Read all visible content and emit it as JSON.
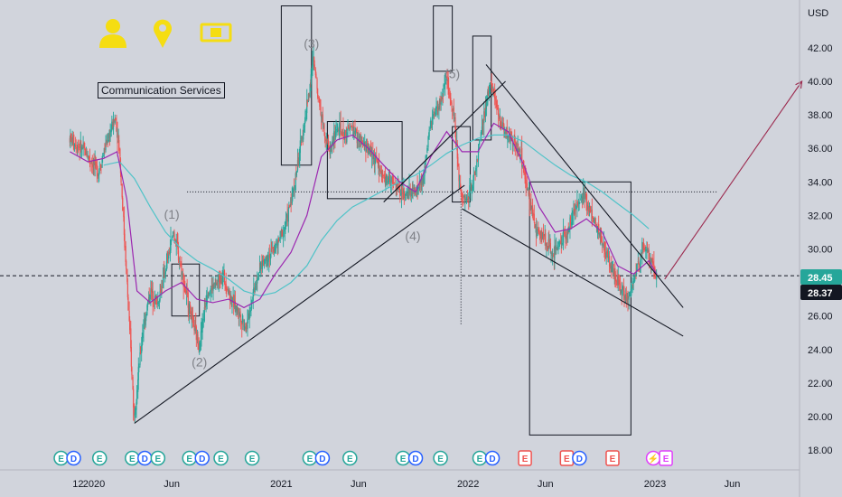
{
  "chart_data": {
    "type": "candlestick",
    "currency": "USD",
    "sector_label": "Communication Services",
    "y_range": [
      17,
      44
    ],
    "y_ticks": [
      "42.00",
      "40.00",
      "38.00",
      "36.00",
      "34.00",
      "32.00",
      "30.00",
      "28.00",
      "26.00",
      "24.00",
      "22.00",
      "20.00",
      "18.00"
    ],
    "y_tick_values": [
      42,
      40,
      38,
      36,
      34,
      32,
      30,
      28,
      26,
      24,
      22,
      20,
      18
    ],
    "x_ticks": [
      "12",
      "2020",
      "Jun",
      "2021",
      "Jun",
      "2022",
      "Jun",
      "2023",
      "Jun"
    ],
    "x_tick_dates": [
      "2019-12-01",
      "2020-01-01",
      "2020-06-01",
      "2021-01-01",
      "2021-06-01",
      "2022-01-01",
      "2022-06-01",
      "2023-01-01",
      "2023-06-01"
    ],
    "last_price": "28.37",
    "moving_average_price": "28.45",
    "price_line_value": 28.4,
    "horizontal_level": 33.4,
    "wave_labels": [
      "(1)",
      "(2)",
      "(3)",
      "(4)",
      "(5)"
    ],
    "wave_label_values": [
      {
        "date": "2020-06-01",
        "price": 31.8
      },
      {
        "date": "2020-07-25",
        "price": 23.0
      },
      {
        "date": "2021-03-01",
        "price": 42.0
      },
      {
        "date": "2021-09-15",
        "price": 30.5
      },
      {
        "date": "2021-12-01",
        "price": 40.2
      }
    ],
    "price_series": [
      [
        "2019-11-15",
        36.6
      ],
      [
        "2019-12-15",
        35.8
      ],
      [
        "2020-01-10",
        34.6
      ],
      [
        "2020-01-25",
        36.3
      ],
      [
        "2020-02-12",
        37.8
      ],
      [
        "2020-02-20",
        36.0
      ],
      [
        "2020-03-05",
        28.5
      ],
      [
        "2020-03-20",
        20.0
      ],
      [
        "2020-04-05",
        25.0
      ],
      [
        "2020-04-20",
        27.5
      ],
      [
        "2020-05-05",
        26.8
      ],
      [
        "2020-05-20",
        28.8
      ],
      [
        "2020-06-05",
        31.0
      ],
      [
        "2020-06-20",
        28.8
      ],
      [
        "2020-07-05",
        26.5
      ],
      [
        "2020-07-25",
        24.2
      ],
      [
        "2020-08-10",
        27.5
      ],
      [
        "2020-08-25",
        27.8
      ],
      [
        "2020-09-10",
        28.5
      ],
      [
        "2020-09-25",
        27.0
      ],
      [
        "2020-10-10",
        26.2
      ],
      [
        "2020-10-25",
        25.3
      ],
      [
        "2020-11-10",
        27.8
      ],
      [
        "2020-11-25",
        29.2
      ],
      [
        "2020-12-10",
        29.7
      ],
      [
        "2020-12-25",
        30.3
      ],
      [
        "2021-01-10",
        31.5
      ],
      [
        "2021-01-25",
        33.5
      ],
      [
        "2021-02-10",
        36.5
      ],
      [
        "2021-02-25",
        39.5
      ],
      [
        "2021-03-05",
        41.3
      ],
      [
        "2021-03-20",
        38.0
      ],
      [
        "2021-04-05",
        35.8
      ],
      [
        "2021-04-20",
        37.2
      ],
      [
        "2021-05-05",
        36.8
      ],
      [
        "2021-05-20",
        37.3
      ],
      [
        "2021-06-05",
        36.3
      ],
      [
        "2021-06-20",
        36.0
      ],
      [
        "2021-07-05",
        35.3
      ],
      [
        "2021-07-20",
        34.2
      ],
      [
        "2021-08-05",
        34.0
      ],
      [
        "2021-08-20",
        33.5
      ],
      [
        "2021-09-05",
        33.2
      ],
      [
        "2021-09-20",
        33.5
      ],
      [
        "2021-10-05",
        34.0
      ],
      [
        "2021-10-20",
        37.5
      ],
      [
        "2021-11-05",
        38.5
      ],
      [
        "2021-11-20",
        40.0
      ],
      [
        "2021-12-05",
        38.0
      ],
      [
        "2021-12-15",
        34.0
      ],
      [
        "2021-12-25",
        32.8
      ],
      [
        "2022-01-10",
        33.8
      ],
      [
        "2022-01-25",
        36.5
      ],
      [
        "2022-02-05",
        38.5
      ],
      [
        "2022-02-15",
        40.2
      ],
      [
        "2022-02-28",
        38.0
      ],
      [
        "2022-03-15",
        37.0
      ],
      [
        "2022-03-30",
        36.5
      ],
      [
        "2022-04-15",
        35.5
      ],
      [
        "2022-04-30",
        33.0
      ],
      [
        "2022-05-15",
        31.0
      ],
      [
        "2022-05-30",
        30.8
      ],
      [
        "2022-06-15",
        29.5
      ],
      [
        "2022-06-30",
        30.5
      ],
      [
        "2022-07-15",
        31.0
      ],
      [
        "2022-07-30",
        32.5
      ],
      [
        "2022-08-15",
        33.2
      ],
      [
        "2022-08-30",
        32.0
      ],
      [
        "2022-09-15",
        31.0
      ],
      [
        "2022-09-30",
        29.5
      ],
      [
        "2022-10-15",
        28.5
      ],
      [
        "2022-10-30",
        27.5
      ],
      [
        "2022-11-10",
        27.0
      ],
      [
        "2022-11-25",
        28.5
      ],
      [
        "2022-12-10",
        30.3
      ],
      [
        "2022-12-25",
        29.2
      ],
      [
        "2023-01-05",
        28.37
      ]
    ],
    "moving_average_fast": [
      [
        "2019-11-15",
        35.8
      ],
      [
        "2019-12-20",
        35.2
      ],
      [
        "2020-01-20",
        35.4
      ],
      [
        "2020-02-15",
        35.8
      ],
      [
        "2020-03-05",
        33.0
      ],
      [
        "2020-03-25",
        27.5
      ],
      [
        "2020-04-20",
        26.8
      ],
      [
        "2020-05-20",
        27.5
      ],
      [
        "2020-06-20",
        28.0
      ],
      [
        "2020-07-20",
        27.0
      ],
      [
        "2020-08-20",
        26.8
      ],
      [
        "2020-09-20",
        27.0
      ],
      [
        "2020-10-20",
        26.5
      ],
      [
        "2020-11-20",
        27.0
      ],
      [
        "2020-12-20",
        28.5
      ],
      [
        "2021-01-20",
        29.8
      ],
      [
        "2021-02-20",
        32.0
      ],
      [
        "2021-03-20",
        35.5
      ],
      [
        "2021-04-20",
        36.5
      ],
      [
        "2021-05-20",
        36.8
      ],
      [
        "2021-06-20",
        36.0
      ],
      [
        "2021-07-20",
        35.0
      ],
      [
        "2021-08-20",
        34.0
      ],
      [
        "2021-09-20",
        33.4
      ],
      [
        "2021-10-20",
        35.5
      ],
      [
        "2021-11-20",
        37.0
      ],
      [
        "2021-12-20",
        35.8
      ],
      [
        "2022-01-20",
        35.8
      ],
      [
        "2022-02-20",
        37.5
      ],
      [
        "2022-03-20",
        37.0
      ],
      [
        "2022-04-20",
        35.0
      ],
      [
        "2022-05-20",
        32.5
      ],
      [
        "2022-06-20",
        31.0
      ],
      [
        "2022-07-20",
        31.2
      ],
      [
        "2022-08-20",
        31.8
      ],
      [
        "2022-09-20",
        31.0
      ],
      [
        "2022-10-20",
        29.0
      ],
      [
        "2022-11-20",
        28.5
      ],
      [
        "2022-12-20",
        29.3
      ],
      [
        "2023-01-05",
        28.45
      ]
    ],
    "moving_average_slow": [
      [
        "2020-01-20",
        35.0
      ],
      [
        "2020-02-20",
        35.2
      ],
      [
        "2020-03-20",
        34.2
      ],
      [
        "2020-04-20",
        32.5
      ],
      [
        "2020-05-20",
        31.0
      ],
      [
        "2020-06-20",
        30.0
      ],
      [
        "2020-07-20",
        29.3
      ],
      [
        "2020-08-20",
        28.8
      ],
      [
        "2020-09-20",
        28.2
      ],
      [
        "2020-10-20",
        27.5
      ],
      [
        "2020-11-20",
        27.2
      ],
      [
        "2020-12-20",
        27.4
      ],
      [
        "2021-01-20",
        28.0
      ],
      [
        "2021-02-20",
        29.0
      ],
      [
        "2021-03-20",
        30.5
      ],
      [
        "2021-04-20",
        31.7
      ],
      [
        "2021-05-20",
        32.5
      ],
      [
        "2021-06-20",
        33.0
      ],
      [
        "2021-07-20",
        33.5
      ],
      [
        "2021-08-20",
        34.0
      ],
      [
        "2021-09-20",
        34.4
      ],
      [
        "2021-10-20",
        35.0
      ],
      [
        "2021-11-20",
        35.7
      ],
      [
        "2021-12-20",
        36.2
      ],
      [
        "2022-01-20",
        36.6
      ],
      [
        "2022-02-20",
        36.8
      ],
      [
        "2022-03-20",
        36.8
      ],
      [
        "2022-04-20",
        36.4
      ],
      [
        "2022-05-20",
        35.7
      ],
      [
        "2022-06-20",
        35.0
      ],
      [
        "2022-07-20",
        34.4
      ],
      [
        "2022-08-20",
        34.0
      ],
      [
        "2022-09-20",
        33.4
      ],
      [
        "2022-10-20",
        32.7
      ],
      [
        "2022-11-20",
        32.0
      ],
      [
        "2022-12-20",
        31.2
      ]
    ],
    "trend_lines": [
      {
        "from": [
          "2020-03-20",
          19.6
        ],
        "to": [
          "2021-12-25",
          33.8
        ]
      },
      {
        "from": [
          "2021-07-20",
          32.8
        ],
        "to": [
          "2022-03-15",
          40.0
        ]
      },
      {
        "from": [
          "2022-02-05",
          41.0
        ],
        "to": [
          "2023-02-25",
          26.5
        ]
      },
      {
        "from": [
          "2021-12-20",
          32.4
        ],
        "to": [
          "2023-02-25",
          24.8
        ]
      },
      {
        "from": [
          "2023-01-20",
          28.2
        ],
        "to": [
          "2023-10-15",
          40.0
        ]
      }
    ],
    "annotation_boxes": [
      {
        "from": [
          "2020-06-01",
          26.0
        ],
        "to": [
          "2020-07-25",
          29.1
        ]
      },
      {
        "from": [
          "2021-01-01",
          35.0
        ],
        "to": [
          "2021-03-01",
          44.5
        ]
      },
      {
        "from": [
          "2021-04-01",
          33.0
        ],
        "to": [
          "2021-08-25",
          37.6
        ]
      },
      {
        "from": [
          "2021-10-25",
          40.6
        ],
        "to": [
          "2021-12-01",
          44.5
        ]
      },
      {
        "from": [
          "2021-12-01",
          32.8
        ],
        "to": [
          "2022-01-05",
          37.3
        ]
      },
      {
        "from": [
          "2022-01-10",
          36.5
        ],
        "to": [
          "2022-02-15",
          42.7
        ]
      },
      {
        "from": [
          "2022-05-01",
          18.9
        ],
        "to": [
          "2022-11-15",
          34.0
        ]
      }
    ],
    "vertical_marker": {
      "date": "2021-12-18",
      "from": 25.5,
      "to": 33.5
    },
    "events": [
      {
        "date": "2019-11-10",
        "marks": [
          "E",
          "D"
        ]
      },
      {
        "date": "2020-01-12",
        "marks": [
          "E"
        ]
      },
      {
        "date": "2020-03-28",
        "marks": [
          "E",
          "D"
        ]
      },
      {
        "date": "2020-05-05",
        "marks": [
          "E"
        ]
      },
      {
        "date": "2020-07-18",
        "marks": [
          "E",
          "D"
        ]
      },
      {
        "date": "2020-09-05",
        "marks": [
          "E"
        ]
      },
      {
        "date": "2020-11-05",
        "marks": [
          "E"
        ]
      },
      {
        "date": "2021-03-10",
        "marks": [
          "E",
          "D"
        ]
      },
      {
        "date": "2021-05-15",
        "marks": [
          "E"
        ]
      },
      {
        "date": "2021-09-08",
        "marks": [
          "E",
          "D"
        ]
      },
      {
        "date": "2021-11-08",
        "marks": [
          "E"
        ]
      },
      {
        "date": "2022-02-05",
        "marks": [
          "E",
          "D"
        ]
      },
      {
        "date": "2022-04-22",
        "marks": [
          "E"
        ]
      },
      {
        "date": "2022-07-25",
        "marks": [
          "E",
          "D"
        ]
      },
      {
        "date": "2022-10-10",
        "marks": [
          "E"
        ]
      },
      {
        "date": "2023-01-10",
        "marks": [
          "⚡",
          "E"
        ]
      }
    ],
    "colors": {
      "background": "#d1d4dc",
      "up_candle": "#26a69a",
      "down_candle": "#ef5350",
      "ma_fast": "#9c27b0",
      "ma_slow": "#4fc3c8",
      "drawing": "#131722",
      "projection_arrow": "#9c2a4e",
      "earnings": "#26a69a",
      "dividend": "#2962ff",
      "upcoming": "#e040fb",
      "icon_yellow": "#f5dd12",
      "price_tag": "#131722",
      "ma_tag": "#26a69a"
    }
  }
}
